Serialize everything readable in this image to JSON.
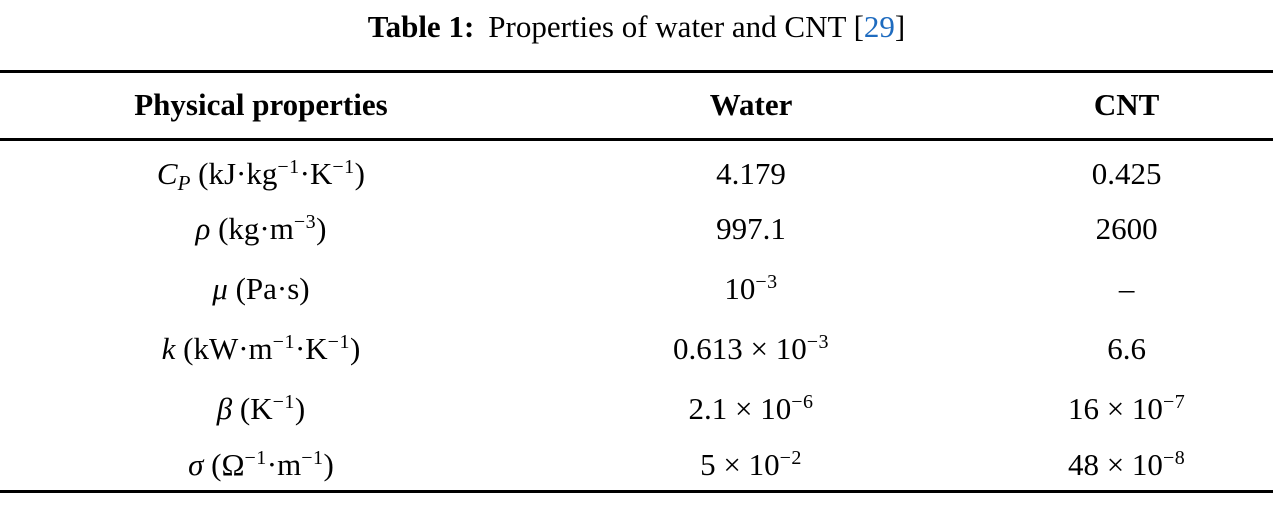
{
  "caption": {
    "label": "Table 1:",
    "title": "Properties of water and CNT",
    "citation_open": "[",
    "citation_number": "29",
    "citation_close": "]",
    "citation_color": "#1e6bbf"
  },
  "table": {
    "headers": [
      "Physical properties",
      "Water",
      "CNT"
    ],
    "rows": [
      {
        "cells": [
          [
            {
              "t": "C",
              "s": "i"
            },
            {
              "t": "P",
              "s": "sub"
            },
            {
              "t": " (kJ·kg",
              "s": "n"
            },
            {
              "t": "−1",
              "s": "sup"
            },
            {
              "t": "·K",
              "s": "n"
            },
            {
              "t": "−1",
              "s": "sup"
            },
            {
              "t": ")",
              "s": "n"
            }
          ],
          [
            {
              "t": "4.179",
              "s": "n"
            }
          ],
          [
            {
              "t": "0.425",
              "s": "n"
            }
          ]
        ]
      },
      {
        "cells": [
          [
            {
              "t": "ρ",
              "s": "i"
            },
            {
              "t": " (kg·m",
              "s": "n"
            },
            {
              "t": "−3",
              "s": "sup"
            },
            {
              "t": ")",
              "s": "n"
            }
          ],
          [
            {
              "t": "997.1",
              "s": "n"
            }
          ],
          [
            {
              "t": "2600",
              "s": "n"
            }
          ]
        ]
      },
      {
        "cells": [
          [
            {
              "t": "μ",
              "s": "i"
            },
            {
              "t": " (Pa·s)",
              "s": "n"
            }
          ],
          [
            {
              "t": "10",
              "s": "n"
            },
            {
              "t": "−3",
              "s": "sup"
            }
          ],
          [
            {
              "t": "–",
              "s": "n"
            }
          ]
        ]
      },
      {
        "cells": [
          [
            {
              "t": "k",
              "s": "i"
            },
            {
              "t": " (kW·m",
              "s": "n"
            },
            {
              "t": "−1",
              "s": "sup"
            },
            {
              "t": "·K",
              "s": "n"
            },
            {
              "t": "−1",
              "s": "sup"
            },
            {
              "t": ")",
              "s": "n"
            }
          ],
          [
            {
              "t": "0.613 × 10",
              "s": "n"
            },
            {
              "t": "−3",
              "s": "sup"
            }
          ],
          [
            {
              "t": "6.6",
              "s": "n"
            }
          ]
        ]
      },
      {
        "cells": [
          [
            {
              "t": "β",
              "s": "i"
            },
            {
              "t": " (K",
              "s": "n"
            },
            {
              "t": "−1",
              "s": "sup"
            },
            {
              "t": ")",
              "s": "n"
            }
          ],
          [
            {
              "t": "2.1 × 10",
              "s": "n"
            },
            {
              "t": "−6",
              "s": "sup"
            }
          ],
          [
            {
              "t": "16 × 10",
              "s": "n"
            },
            {
              "t": "−7",
              "s": "sup"
            }
          ]
        ]
      },
      {
        "cells": [
          [
            {
              "t": "σ",
              "s": "i"
            },
            {
              "t": " (Ω",
              "s": "n"
            },
            {
              "t": "−1",
              "s": "sup"
            },
            {
              "t": "·m",
              "s": "n"
            },
            {
              "t": "−1",
              "s": "sup"
            },
            {
              "t": ")",
              "s": "n"
            }
          ],
          [
            {
              "t": "5 × 10",
              "s": "n"
            },
            {
              "t": "−2",
              "s": "sup"
            }
          ],
          [
            {
              "t": "48 × 10",
              "s": "n"
            },
            {
              "t": "−8",
              "s": "sup"
            }
          ]
        ]
      }
    ]
  }
}
